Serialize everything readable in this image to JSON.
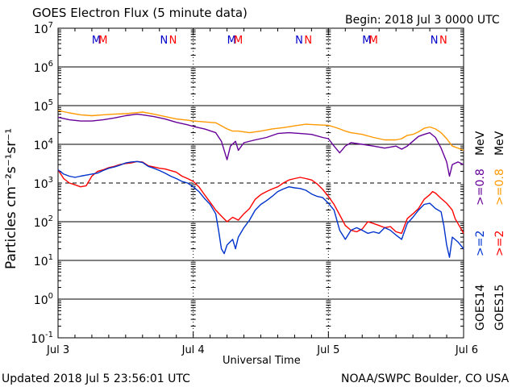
{
  "title": "GOES Electron Flux (5 minute data)",
  "begin": "Begin: 2018 Jul 3 0000 UTC",
  "updated": "Updated 2018 Jul  5 23:56:01 UTC",
  "credit": "NOAA/SWPC Boulder, CO USA",
  "colors": {
    "goes14_08": "#660099",
    "goes15_08": "#ff9900",
    "goes14_2": "#0033cc",
    "goes15_2": "#ff0000",
    "axis": "#000000",
    "marker_m": "#0000cc",
    "marker_n": "#0000cc"
  },
  "legend": {
    "goes14": "GOES14",
    "goes15": "GOES15",
    "g14_2": ">=2",
    "g15_2": ">=2",
    "g14_08": ">=0.8",
    "g15_08": ">=0.8",
    "mev": "MeV"
  },
  "chart_data": {
    "type": "line",
    "title": "GOES Electron Flux (5 minute data)",
    "xlabel": "Universal Time",
    "ylabel": "Particles cm⁻²s⁻¹sr⁻¹",
    "yscale": "log",
    "ylim": [
      0.1,
      10000000
    ],
    "xlim": [
      0,
      72
    ],
    "x_unit": "hours since 2018 Jul 3 0000 UTC",
    "x_tick_labels": [
      {
        "x": 0,
        "label": "Jul 3"
      },
      {
        "x": 24,
        "label": "Jul 4"
      },
      {
        "x": 48,
        "label": "Jul 5"
      },
      {
        "x": 72,
        "label": "Jul 6"
      }
    ],
    "y_ticks": [
      {
        "exp": -1,
        "label": "10",
        "sup": "-1"
      },
      {
        "exp": 0,
        "label": "10",
        "sup": "0"
      },
      {
        "exp": 1,
        "label": "10",
        "sup": "1"
      },
      {
        "exp": 2,
        "label": "10",
        "sup": "2"
      },
      {
        "exp": 3,
        "label": "10",
        "sup": "3"
      },
      {
        "exp": 4,
        "label": "10",
        "sup": "4"
      },
      {
        "exp": 5,
        "label": "10",
        "sup": "5"
      },
      {
        "exp": 6,
        "label": "10",
        "sup": "6"
      },
      {
        "exp": 7,
        "label": "10",
        "sup": "7"
      }
    ],
    "dashed_threshold": 1000,
    "markers": [
      {
        "label": "M",
        "x": 6.8,
        "color": "blue"
      },
      {
        "label": "M",
        "x": 8.0,
        "color": "red"
      },
      {
        "label": "N",
        "x": 18.8,
        "color": "blue"
      },
      {
        "label": "N",
        "x": 20.4,
        "color": "red"
      },
      {
        "label": "M",
        "x": 30.8,
        "color": "blue"
      },
      {
        "label": "M",
        "x": 32.0,
        "color": "red"
      },
      {
        "label": "N",
        "x": 42.8,
        "color": "blue"
      },
      {
        "label": "N",
        "x": 44.4,
        "color": "red"
      },
      {
        "label": "M",
        "x": 54.8,
        "color": "blue"
      },
      {
        "label": "M",
        "x": 56.0,
        "color": "red"
      },
      {
        "label": "N",
        "x": 66.8,
        "color": "blue"
      },
      {
        "label": "N",
        "x": 68.4,
        "color": "red"
      }
    ],
    "series": [
      {
        "name": "GOES15 >=0.8 MeV",
        "color": "#ff9900",
        "points": [
          [
            0,
            75000
          ],
          [
            2,
            65000
          ],
          [
            4,
            58000
          ],
          [
            6,
            55000
          ],
          [
            8,
            58000
          ],
          [
            10,
            60000
          ],
          [
            12,
            62000
          ],
          [
            14,
            66000
          ],
          [
            15,
            68000
          ],
          [
            17,
            60000
          ],
          [
            19,
            52000
          ],
          [
            21,
            45000
          ],
          [
            23,
            42000
          ],
          [
            24,
            40000
          ],
          [
            26,
            38000
          ],
          [
            28,
            36000
          ],
          [
            30,
            25000
          ],
          [
            31,
            22000
          ],
          [
            32,
            22000
          ],
          [
            34,
            20000
          ],
          [
            36,
            22000
          ],
          [
            38,
            25000
          ],
          [
            40,
            27000
          ],
          [
            42,
            30000
          ],
          [
            44,
            33000
          ],
          [
            46,
            32000
          ],
          [
            48,
            31000
          ],
          [
            49,
            28000
          ],
          [
            50,
            25000
          ],
          [
            51,
            22000
          ],
          [
            52,
            20000
          ],
          [
            54,
            18000
          ],
          [
            56,
            15000
          ],
          [
            58,
            13000
          ],
          [
            60,
            13000
          ],
          [
            61,
            14000
          ],
          [
            62,
            17000
          ],
          [
            63,
            18000
          ],
          [
            64,
            21000
          ],
          [
            65,
            26000
          ],
          [
            66,
            28000
          ],
          [
            67,
            25000
          ],
          [
            68,
            20000
          ],
          [
            69,
            14000
          ],
          [
            70,
            9000
          ],
          [
            71,
            8000
          ],
          [
            72,
            7000
          ]
        ]
      },
      {
        "name": "GOES14 >=0.8 MeV",
        "color": "#660099",
        "points": [
          [
            0,
            50000
          ],
          [
            2,
            43000
          ],
          [
            4,
            40000
          ],
          [
            6,
            40000
          ],
          [
            8,
            43000
          ],
          [
            10,
            48000
          ],
          [
            12,
            55000
          ],
          [
            14,
            60000
          ],
          [
            15,
            58000
          ],
          [
            17,
            52000
          ],
          [
            19,
            45000
          ],
          [
            21,
            37000
          ],
          [
            23,
            32000
          ],
          [
            24,
            29000
          ],
          [
            26,
            25000
          ],
          [
            28,
            20000
          ],
          [
            29,
            12000
          ],
          [
            30,
            4000
          ],
          [
            30.6,
            9000
          ],
          [
            31.5,
            12000
          ],
          [
            32,
            7000
          ],
          [
            33,
            11000
          ],
          [
            35,
            13000
          ],
          [
            37,
            15000
          ],
          [
            39,
            19000
          ],
          [
            41,
            20000
          ],
          [
            43,
            19000
          ],
          [
            45,
            18000
          ],
          [
            47,
            15000
          ],
          [
            48,
            14000
          ],
          [
            49,
            9000
          ],
          [
            50,
            6000
          ],
          [
            51,
            9000
          ],
          [
            52,
            11000
          ],
          [
            54,
            10000
          ],
          [
            56,
            9000
          ],
          [
            58,
            8000
          ],
          [
            60,
            9000
          ],
          [
            61,
            7500
          ],
          [
            62,
            9000
          ],
          [
            63,
            12000
          ],
          [
            64,
            16000
          ],
          [
            65,
            18000
          ],
          [
            66,
            20000
          ],
          [
            67,
            15000
          ],
          [
            68,
            8000
          ],
          [
            69,
            3500
          ],
          [
            69.5,
            1500
          ],
          [
            70,
            3000
          ],
          [
            71,
            3500
          ],
          [
            72,
            3000
          ]
        ]
      },
      {
        "name": "GOES15 >=2 MeV",
        "color": "#ff0000",
        "points": [
          [
            0,
            2200
          ],
          [
            1,
            1300
          ],
          [
            2,
            1000
          ],
          [
            3,
            900
          ],
          [
            4,
            800
          ],
          [
            5,
            850
          ],
          [
            6,
            1500
          ],
          [
            7,
            2000
          ],
          [
            8,
            2200
          ],
          [
            9,
            2500
          ],
          [
            10,
            2700
          ],
          [
            11,
            3000
          ],
          [
            12,
            3200
          ],
          [
            13,
            3300
          ],
          [
            14,
            3600
          ],
          [
            15,
            3500
          ],
          [
            16,
            2800
          ],
          [
            17,
            2600
          ],
          [
            18,
            2400
          ],
          [
            19,
            2300
          ],
          [
            21,
            1900
          ],
          [
            22,
            1500
          ],
          [
            23,
            1300
          ],
          [
            24,
            1100
          ],
          [
            25,
            800
          ],
          [
            26,
            500
          ],
          [
            27,
            320
          ],
          [
            28,
            200
          ],
          [
            29,
            140
          ],
          [
            30,
            100
          ],
          [
            31,
            130
          ],
          [
            32,
            110
          ],
          [
            33,
            160
          ],
          [
            34,
            220
          ],
          [
            35,
            380
          ],
          [
            36,
            500
          ],
          [
            37,
            600
          ],
          [
            38,
            700
          ],
          [
            39,
            800
          ],
          [
            40,
            1000
          ],
          [
            41,
            1200
          ],
          [
            42,
            1300
          ],
          [
            43,
            1400
          ],
          [
            44,
            1300
          ],
          [
            45,
            1200
          ],
          [
            46,
            950
          ],
          [
            47,
            680
          ],
          [
            48,
            450
          ],
          [
            49,
            280
          ],
          [
            50,
            150
          ],
          [
            51,
            80
          ],
          [
            52,
            60
          ],
          [
            53,
            55
          ],
          [
            54,
            65
          ],
          [
            55,
            100
          ],
          [
            56,
            90
          ],
          [
            57,
            80
          ],
          [
            58,
            70
          ],
          [
            59,
            75
          ],
          [
            60,
            55
          ],
          [
            61,
            50
          ],
          [
            62,
            120
          ],
          [
            63,
            160
          ],
          [
            64,
            220
          ],
          [
            65,
            380
          ],
          [
            66,
            500
          ],
          [
            66.5,
            600
          ],
          [
            67,
            550
          ],
          [
            68,
            400
          ],
          [
            69,
            300
          ],
          [
            70,
            200
          ],
          [
            70.5,
            120
          ],
          [
            71,
            90
          ],
          [
            72,
            50
          ]
        ]
      },
      {
        "name": "GOES14 >=2 MeV",
        "color": "#0033cc",
        "points": [
          [
            0,
            2200
          ],
          [
            1,
            1700
          ],
          [
            2,
            1500
          ],
          [
            3,
            1400
          ],
          [
            4,
            1500
          ],
          [
            5,
            1600
          ],
          [
            6,
            1700
          ],
          [
            7,
            1800
          ],
          [
            8,
            2100
          ],
          [
            9,
            2400
          ],
          [
            10,
            2600
          ],
          [
            11,
            2900
          ],
          [
            12,
            3300
          ],
          [
            13,
            3500
          ],
          [
            14,
            3600
          ],
          [
            15,
            3400
          ],
          [
            16,
            2700
          ],
          [
            17,
            2400
          ],
          [
            18,
            2100
          ],
          [
            19,
            1800
          ],
          [
            20,
            1500
          ],
          [
            21,
            1300
          ],
          [
            22,
            1100
          ],
          [
            23,
            1000
          ],
          [
            24,
            800
          ],
          [
            25,
            600
          ],
          [
            26,
            400
          ],
          [
            27,
            280
          ],
          [
            28,
            160
          ],
          [
            28.5,
            60
          ],
          [
            29,
            20
          ],
          [
            29.5,
            15
          ],
          [
            30,
            25
          ],
          [
            31,
            35
          ],
          [
            31.5,
            20
          ],
          [
            32,
            40
          ],
          [
            33,
            70
          ],
          [
            34,
            110
          ],
          [
            35,
            200
          ],
          [
            36,
            280
          ],
          [
            37,
            350
          ],
          [
            38,
            450
          ],
          [
            39,
            600
          ],
          [
            40,
            700
          ],
          [
            41,
            800
          ],
          [
            42,
            750
          ],
          [
            43,
            720
          ],
          [
            44,
            650
          ],
          [
            45,
            520
          ],
          [
            46,
            450
          ],
          [
            47,
            420
          ],
          [
            48,
            300
          ],
          [
            49,
            200
          ],
          [
            50,
            60
          ],
          [
            51,
            35
          ],
          [
            52,
            60
          ],
          [
            53,
            70
          ],
          [
            54,
            60
          ],
          [
            55,
            50
          ],
          [
            56,
            55
          ],
          [
            57,
            50
          ],
          [
            58,
            70
          ],
          [
            59,
            60
          ],
          [
            60,
            45
          ],
          [
            61,
            35
          ],
          [
            62,
            90
          ],
          [
            63,
            130
          ],
          [
            64,
            200
          ],
          [
            65,
            280
          ],
          [
            66,
            300
          ],
          [
            67,
            220
          ],
          [
            68,
            180
          ],
          [
            68.5,
            80
          ],
          [
            69,
            25
          ],
          [
            69.5,
            12
          ],
          [
            70,
            40
          ],
          [
            71,
            30
          ],
          [
            72,
            20
          ]
        ]
      }
    ]
  }
}
